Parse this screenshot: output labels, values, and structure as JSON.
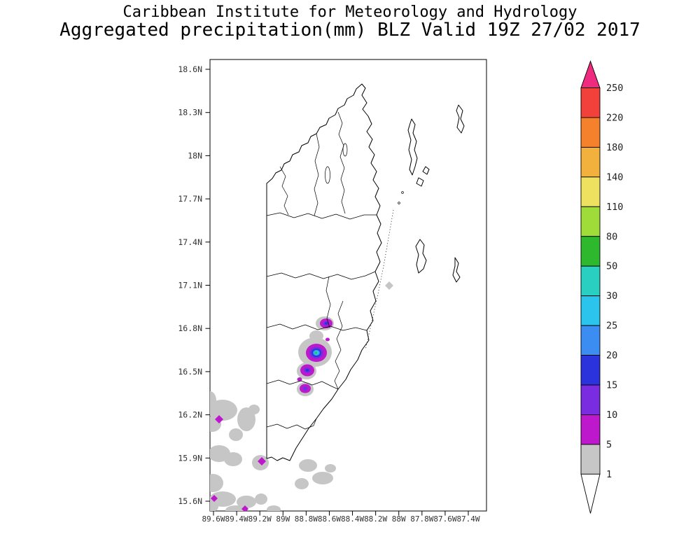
{
  "header": {
    "line1": "Caribbean Institute for Meteorology and Hydrology",
    "line2": "Aggregated precipitation(mm) BLZ Valid 19Z 27/02 2017"
  },
  "map": {
    "lat_ticks": [
      {
        "label": "18.6N",
        "deg": 18.6
      },
      {
        "label": "18.3N",
        "deg": 18.3
      },
      {
        "label": "18N",
        "deg": 18.0
      },
      {
        "label": "17.7N",
        "deg": 17.7
      },
      {
        "label": "17.4N",
        "deg": 17.4
      },
      {
        "label": "17.1N",
        "deg": 17.1
      },
      {
        "label": "16.8N",
        "deg": 16.8
      },
      {
        "label": "16.5N",
        "deg": 16.5
      },
      {
        "label": "16.2N",
        "deg": 16.2
      },
      {
        "label": "15.9N",
        "deg": 15.9
      },
      {
        "label": "15.6N",
        "deg": 15.6
      }
    ],
    "lon_ticks": [
      {
        "label": "89.6W",
        "deg": 89.6
      },
      {
        "label": "89.4W",
        "deg": 89.4
      },
      {
        "label": "89.2W",
        "deg": 89.2
      },
      {
        "label": "89W",
        "deg": 89.0
      },
      {
        "label": "88.8W",
        "deg": 88.8
      },
      {
        "label": "88.6W",
        "deg": 88.6
      },
      {
        "label": "88.4W",
        "deg": 88.4
      },
      {
        "label": "88.2W",
        "deg": 88.2
      },
      {
        "label": "88W",
        "deg": 88.0
      },
      {
        "label": "87.8W",
        "deg": 87.8
      },
      {
        "label": "87.6W",
        "deg": 87.6
      },
      {
        "label": "87.4W",
        "deg": 87.4
      }
    ]
  },
  "legend": {
    "units": "mm",
    "boundaries": [
      250,
      220,
      180,
      140,
      110,
      80,
      50,
      30,
      25,
      20,
      15,
      10,
      5,
      1
    ],
    "segments": [
      {
        "range": "220-250",
        "color": "#f2403a"
      },
      {
        "range": "180-220",
        "color": "#f5812d"
      },
      {
        "range": "140-180",
        "color": "#f2b03c"
      },
      {
        "range": "110-140",
        "color": "#eee15f"
      },
      {
        "range": "80-110",
        "color": "#9fdc3a"
      },
      {
        "range": "50-80",
        "color": "#2eb82e"
      },
      {
        "range": "30-50",
        "color": "#29cfc0"
      },
      {
        "range": "25-30",
        "color": "#2bc4ec"
      },
      {
        "range": "20-25",
        "color": "#3b8df2"
      },
      {
        "range": "15-20",
        "color": "#2b33dd"
      },
      {
        "range": "10-15",
        "color": "#7a2ce0"
      },
      {
        "range": "5-10",
        "color": "#bd18cc"
      },
      {
        "range": "1-5",
        "color": "#c6c6c6"
      }
    ],
    "over_color": "#ee2b7e",
    "under_color": "#ffffff"
  },
  "chart_data": {
    "type": "heatmap",
    "title": "Aggregated precipitation(mm) BLZ Valid 19Z 27/02 2017",
    "institution": "Caribbean Institute for Meteorology and Hydrology",
    "region": "BLZ (Belize)",
    "valid_time": "19Z 27/02 2017",
    "units": "mm",
    "lat_range_n": [
      15.6,
      18.6
    ],
    "lon_range_w": [
      89.6,
      87.4
    ],
    "levels_mm": [
      1,
      5,
      10,
      15,
      20,
      25,
      30,
      50,
      80,
      110,
      140,
      180,
      220,
      250
    ],
    "features": [
      {
        "area": "west-central Belize near 16.55N 88.85W",
        "max_mm": "30-50",
        "desc": "cluster of convective cells with nested cores 10/15/20/25/30-50 mm"
      },
      {
        "area": "cell near 16.85N 88.65W",
        "max_mm": "15-20",
        "desc": "small cell, 5-10 mm ring with 10-20 mm core"
      },
      {
        "area": "cells near 16.4N 88.85W",
        "max_mm": "10-20",
        "desc": "two smaller cells south of main cluster"
      },
      {
        "area": "southwest sector 15.6-16.3N, 88.9-89.6W",
        "max_mm": "5-10",
        "desc": "broad scattered 1-5 mm area with embedded 5-10 mm spots"
      },
      {
        "area": "near 17.1N 88.05W",
        "max_mm": "1-5",
        "desc": "isolated light spot"
      }
    ]
  }
}
